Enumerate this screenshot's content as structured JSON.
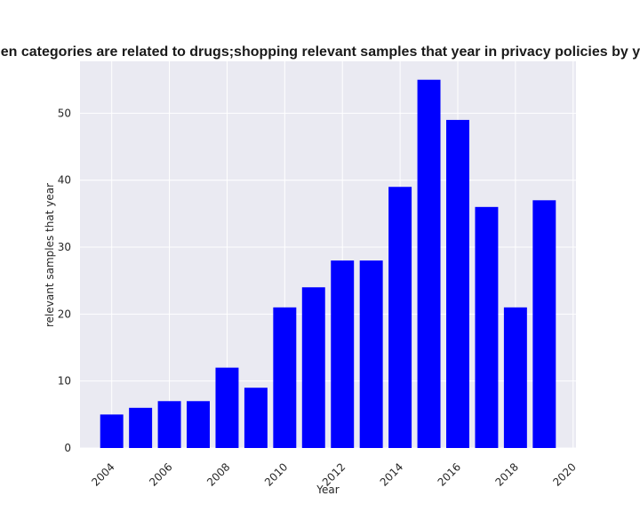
{
  "chart_data": {
    "type": "bar",
    "title": "When categories are related to drugs;shopping relevant samples that year in privacy policies by year",
    "xlabel": "Year",
    "ylabel": "relevant samples that year",
    "x": [
      2004,
      2005,
      2006,
      2007,
      2008,
      2009,
      2010,
      2011,
      2012,
      2013,
      2014,
      2015,
      2016,
      2017,
      2018,
      2019
    ],
    "values": [
      5,
      6,
      7,
      7,
      12,
      9,
      21,
      24,
      28,
      28,
      39,
      55,
      49,
      36,
      21,
      37
    ],
    "xticks": [
      "2004",
      "2006",
      "2008",
      "2010",
      "2012",
      "2014",
      "2016",
      "2018",
      "2020"
    ],
    "yticks": [
      "0",
      "10",
      "20",
      "30",
      "40",
      "50"
    ],
    "xlim": [
      2002.9,
      2020.1
    ],
    "ylim": [
      0,
      57.75
    ],
    "bar_color": "#0000ff",
    "background_color": "#eaeaf2",
    "grid": true
  }
}
